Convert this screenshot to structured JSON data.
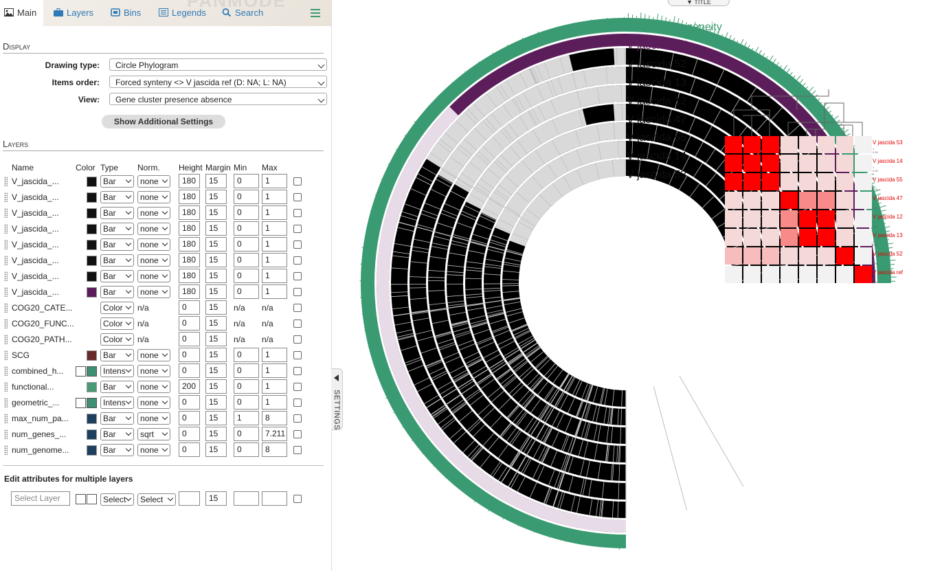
{
  "app": {
    "watermark": "PANMODE"
  },
  "tabs": [
    {
      "label": "Main",
      "icon": "image-icon",
      "active": true
    },
    {
      "label": "Layers",
      "icon": "briefcase-icon"
    },
    {
      "label": "Bins",
      "icon": "bin-icon"
    },
    {
      "label": "Legends",
      "icon": "list-icon"
    },
    {
      "label": "Search",
      "icon": "search-icon"
    }
  ],
  "display": {
    "heading": "Display",
    "drawing_type_label": "Drawing type:",
    "drawing_type": "Circle Phylogram",
    "items_order_label": "Items order:",
    "items_order": "Forced synteny <> V jascida ref (D: NA; L: NA)",
    "view_label": "View:",
    "view": "Gene cluster presence absence",
    "additional_button": "Show Additional Settings"
  },
  "layers": {
    "heading": "Layers",
    "columns": {
      "name": "Name",
      "color": "Color",
      "type": "Type",
      "norm": "Norm.",
      "height": "Height",
      "margin": "Margin",
      "min": "Min",
      "max": "Max"
    },
    "rows": [
      {
        "name": "V_jascida_...",
        "color": "#111111",
        "type": "Bar",
        "norm": "none",
        "height": "180",
        "margin": "15",
        "min": "0",
        "max": "1"
      },
      {
        "name": "V_jascida_...",
        "color": "#111111",
        "type": "Bar",
        "norm": "none",
        "height": "180",
        "margin": "15",
        "min": "0",
        "max": "1"
      },
      {
        "name": "V_jascida_...",
        "color": "#111111",
        "type": "Bar",
        "norm": "none",
        "height": "180",
        "margin": "15",
        "min": "0",
        "max": "1"
      },
      {
        "name": "V_jascida_...",
        "color": "#111111",
        "type": "Bar",
        "norm": "none",
        "height": "180",
        "margin": "15",
        "min": "0",
        "max": "1"
      },
      {
        "name": "V_jascida_...",
        "color": "#111111",
        "type": "Bar",
        "norm": "none",
        "height": "180",
        "margin": "15",
        "min": "0",
        "max": "1"
      },
      {
        "name": "V_jascida_...",
        "color": "#111111",
        "type": "Bar",
        "norm": "none",
        "height": "180",
        "margin": "15",
        "min": "0",
        "max": "1"
      },
      {
        "name": "V_jascida_...",
        "color": "#111111",
        "type": "Bar",
        "norm": "none",
        "height": "180",
        "margin": "15",
        "min": "0",
        "max": "1"
      },
      {
        "name": "V_jascida_...",
        "color": "#5b1e5a",
        "type": "Bar",
        "norm": "none",
        "height": "180",
        "margin": "15",
        "min": "0",
        "max": "1"
      },
      {
        "name": "COG20_CATE...",
        "color": "",
        "type": "Color",
        "norm": "n/a",
        "height": "0",
        "margin": "15",
        "min": "n/a",
        "max": "n/a"
      },
      {
        "name": "COG20_FUNC...",
        "color": "",
        "type": "Color",
        "norm": "n/a",
        "height": "0",
        "margin": "15",
        "min": "n/a",
        "max": "n/a"
      },
      {
        "name": "COG20_PATH...",
        "color": "",
        "type": "Color",
        "norm": "n/a",
        "height": "0",
        "margin": "15",
        "min": "n/a",
        "max": "n/a"
      },
      {
        "name": "SCG",
        "color": "#6b2a2a",
        "type": "Bar",
        "norm": "none",
        "height": "0",
        "margin": "15",
        "min": "0",
        "max": "1"
      },
      {
        "name": "combined_h...",
        "color": "#3f8f72",
        "color2": "#ffffff",
        "type": "Intens",
        "norm": "none",
        "height": "0",
        "margin": "15",
        "min": "0",
        "max": "1"
      },
      {
        "name": "functional...",
        "color": "#4a9a78",
        "type": "Bar",
        "norm": "none",
        "height": "200",
        "margin": "15",
        "min": "0",
        "max": "1"
      },
      {
        "name": "geometric_...",
        "color": "#3f8f72",
        "color2": "#ffffff",
        "type": "Intens",
        "norm": "none",
        "height": "0",
        "margin": "15",
        "min": "0",
        "max": "1"
      },
      {
        "name": "max_num_pa...",
        "color": "#1f3f5f",
        "type": "Bar",
        "norm": "none",
        "height": "0",
        "margin": "15",
        "min": "1",
        "max": "8"
      },
      {
        "name": "num_genes_...",
        "color": "#1f3f5f",
        "type": "Bar",
        "norm": "sqrt",
        "height": "0",
        "margin": "15",
        "min": "0",
        "max": "7.211"
      },
      {
        "name": "num_genome...",
        "color": "#1f3f5f",
        "type": "Bar",
        "norm": "none",
        "height": "0",
        "margin": "15",
        "min": "0",
        "max": "8"
      }
    ],
    "multi_heading": "Edit attributes for multiple layers",
    "multi": {
      "placeholder": "Select Layer",
      "type": "Select",
      "norm": "Select",
      "margin": "15"
    }
  },
  "settings_tab": "SETTINGS",
  "title_tab": "▼ TITLE",
  "ring_labels": [
    {
      "text": "Func. Homogeneity",
      "color": "#3a9b72"
    },
    {
      "text": "V jascida ref",
      "color": "#5b1e5a"
    },
    {
      "text": "V jascida 52",
      "color": "#111111"
    },
    {
      "text": "V jascida 13",
      "color": "#111111"
    },
    {
      "text": "V jascida 12",
      "color": "#111111"
    },
    {
      "text": "V jascida 47",
      "color": "#111111"
    },
    {
      "text": "V jascida 55",
      "color": "#111111"
    },
    {
      "text": "V jascida 14",
      "color": "#111111"
    },
    {
      "text": "V jascida 53",
      "color": "#111111"
    }
  ],
  "heatmap": {
    "labels": [
      "V jascida 53",
      "V jascida 14",
      "V jascida 55",
      "V jascida 47",
      "V jascida 12",
      "V jascida 13",
      "V jascida 52",
      "V jascida ref"
    ],
    "tick_min": "0.90",
    "tick_max": "1",
    "matrix": [
      [
        1.0,
        1.0,
        1.0,
        0.2,
        0.2,
        0.2,
        0.2,
        0.05
      ],
      [
        1.0,
        1.0,
        1.0,
        0.2,
        0.2,
        0.2,
        0.2,
        0.05
      ],
      [
        1.0,
        1.0,
        1.0,
        0.2,
        0.2,
        0.2,
        0.2,
        0.05
      ],
      [
        0.2,
        0.2,
        0.2,
        1.0,
        0.6,
        0.6,
        0.2,
        0.05
      ],
      [
        0.2,
        0.2,
        0.2,
        0.6,
        1.0,
        1.0,
        0.2,
        0.05
      ],
      [
        0.2,
        0.2,
        0.2,
        0.6,
        1.0,
        1.0,
        0.2,
        0.05
      ],
      [
        0.35,
        0.35,
        0.35,
        0.2,
        0.2,
        0.2,
        1.0,
        0.05
      ],
      [
        0.05,
        0.05,
        0.05,
        0.05,
        0.05,
        0.05,
        0.05,
        1.0
      ]
    ]
  },
  "colors": {
    "accent": "#3a9b72",
    "link": "#2e7ab7",
    "ref": "#5b1e5a",
    "heat": "#ff0000"
  }
}
